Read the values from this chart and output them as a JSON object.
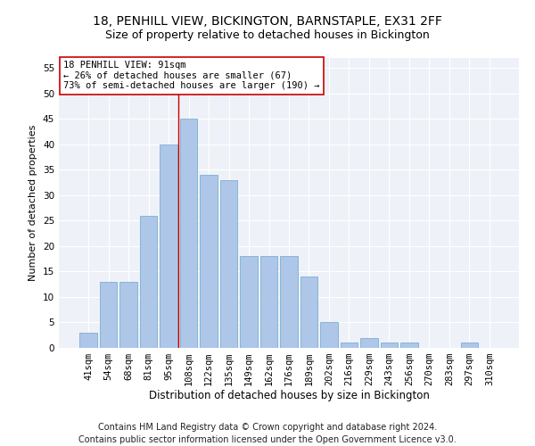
{
  "title1": "18, PENHILL VIEW, BICKINGTON, BARNSTAPLE, EX31 2FF",
  "title2": "Size of property relative to detached houses in Bickington",
  "xlabel": "Distribution of detached houses by size in Bickington",
  "ylabel": "Number of detached properties",
  "categories": [
    "41sqm",
    "54sqm",
    "68sqm",
    "81sqm",
    "95sqm",
    "108sqm",
    "122sqm",
    "135sqm",
    "149sqm",
    "162sqm",
    "176sqm",
    "189sqm",
    "202sqm",
    "216sqm",
    "229sqm",
    "243sqm",
    "256sqm",
    "270sqm",
    "283sqm",
    "297sqm",
    "310sqm"
  ],
  "values": [
    3,
    13,
    13,
    26,
    40,
    45,
    34,
    33,
    18,
    18,
    18,
    14,
    5,
    1,
    2,
    1,
    1,
    0,
    0,
    1,
    0
  ],
  "bar_color": "#aec6e8",
  "bar_edgecolor": "#7aafd4",
  "vline_x_idx": 4.5,
  "vline_color": "#cc0000",
  "annotation_line1": "18 PENHILL VIEW: 91sqm",
  "annotation_line2": "← 26% of detached houses are smaller (67)",
  "annotation_line3": "73% of semi-detached houses are larger (190) →",
  "annotation_box_color": "white",
  "annotation_box_edgecolor": "#cc0000",
  "ylim": [
    0,
    57
  ],
  "yticks": [
    0,
    5,
    10,
    15,
    20,
    25,
    30,
    35,
    40,
    45,
    50,
    55
  ],
  "footer1": "Contains HM Land Registry data © Crown copyright and database right 2024.",
  "footer2": "Contains public sector information licensed under the Open Government Licence v3.0.",
  "bg_color": "#eef2f8",
  "title1_fontsize": 10,
  "title2_fontsize": 9,
  "xlabel_fontsize": 8.5,
  "ylabel_fontsize": 8,
  "tick_fontsize": 7.5,
  "annotation_fontsize": 7.5,
  "footer_fontsize": 7
}
